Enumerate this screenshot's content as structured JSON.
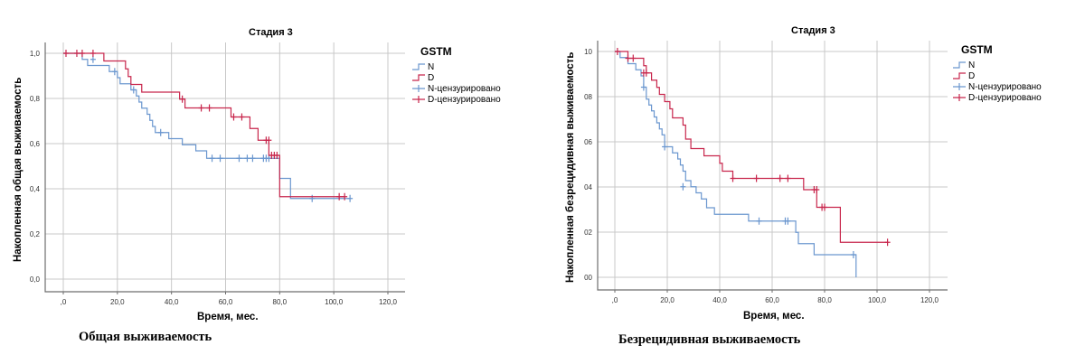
{
  "colors": {
    "N": "#6b97cf",
    "D": "#c8264c",
    "grid": "#c8c8c8",
    "axis": "#6e6e6e"
  },
  "chart_data": [
    {
      "type": "line",
      "subtype": "kaplan-meier-step",
      "title": "Стадия 3",
      "xlabel": "Время, мес.",
      "ylabel": "Накопленная общая выживаемость",
      "caption": "Общая выживаемость",
      "xlim": [
        0,
        120
      ],
      "ylim": [
        0,
        1
      ],
      "x_ticks": [
        ",0",
        "20,0",
        "40,0",
        "60,0",
        "80,0",
        "100,0",
        "120,0"
      ],
      "y_ticks": [
        "0,0",
        "0,2",
        "0,4",
        "0,6",
        "0,8",
        "1,0"
      ],
      "grid": true,
      "legend_title": "GSTM",
      "legend": [
        "N",
        "D",
        "N-цензурировано",
        "D-цензурировано"
      ],
      "legend_position": "right",
      "series": [
        {
          "name": "N",
          "steps": [
            [
              0,
              1.0
            ],
            [
              7,
              0.973
            ],
            [
              9,
              0.946
            ],
            [
              17,
              0.919
            ],
            [
              20,
              0.892
            ],
            [
              21,
              0.865
            ],
            [
              25,
              0.838
            ],
            [
              27,
              0.811
            ],
            [
              28,
              0.784
            ],
            [
              29,
              0.757
            ],
            [
              31,
              0.73
            ],
            [
              32,
              0.703
            ],
            [
              33,
              0.676
            ],
            [
              34,
              0.649
            ],
            [
              39,
              0.622
            ],
            [
              44,
              0.595
            ],
            [
              49,
              0.568
            ],
            [
              53,
              0.535
            ],
            [
              80,
              0.535
            ],
            [
              80,
              0.446
            ],
            [
              84,
              0.357
            ],
            [
              106,
              0.357
            ]
          ],
          "censored": [
            [
              11,
              0.973
            ],
            [
              19,
              0.919
            ],
            [
              26,
              0.838
            ],
            [
              36,
              0.649
            ],
            [
              55,
              0.535
            ],
            [
              58,
              0.535
            ],
            [
              65,
              0.535
            ],
            [
              68,
              0.535
            ],
            [
              70,
              0.535
            ],
            [
              74,
              0.535
            ],
            [
              75,
              0.535
            ],
            [
              76,
              0.535
            ],
            [
              92,
              0.357
            ],
            [
              106,
              0.357
            ]
          ]
        },
        {
          "name": "D",
          "steps": [
            [
              0,
              1.0
            ],
            [
              15,
              0.966
            ],
            [
              23,
              0.931
            ],
            [
              24,
              0.897
            ],
            [
              25,
              0.862
            ],
            [
              29,
              0.828
            ],
            [
              43,
              0.797
            ],
            [
              45,
              0.758
            ],
            [
              62,
              0.718
            ],
            [
              69,
              0.667
            ],
            [
              72,
              0.615
            ],
            [
              76,
              0.548
            ],
            [
              80,
              0.365
            ],
            [
              104,
              0.365
            ]
          ],
          "censored": [
            [
              1,
              1.0
            ],
            [
              5,
              1.0
            ],
            [
              7,
              1.0
            ],
            [
              11,
              1.0
            ],
            [
              44,
              0.797
            ],
            [
              51,
              0.758
            ],
            [
              54,
              0.758
            ],
            [
              63,
              0.718
            ],
            [
              66,
              0.718
            ],
            [
              75,
              0.615
            ],
            [
              76,
              0.615
            ],
            [
              77,
              0.548
            ],
            [
              78,
              0.548
            ],
            [
              79,
              0.548
            ],
            [
              102,
              0.365
            ],
            [
              104,
              0.365
            ]
          ]
        }
      ]
    },
    {
      "type": "line",
      "subtype": "kaplan-meier-step",
      "title": "Стадия 3",
      "xlabel": "Время, мес.",
      "ylabel": "Накопленная безрецидивная выживаемость",
      "caption": "Безрецидивная выживаемость",
      "xlim": [
        0,
        120
      ],
      "ylim": [
        0,
        1
      ],
      "x_ticks": [
        ",0",
        "20,0",
        "40,0",
        "60,0",
        "80,0",
        "100,0",
        "120,0"
      ],
      "y_ticks": [
        "00",
        "02",
        "04",
        "06",
        "08",
        "10"
      ],
      "grid": true,
      "legend_title": "GSTM",
      "legend": [
        "N",
        "D",
        "N-цензурировано",
        "D-цензурировано"
      ],
      "legend_position": "right",
      "series": [
        {
          "name": "N",
          "steps": [
            [
              0,
              1.0
            ],
            [
              2,
              0.973
            ],
            [
              5,
              0.946
            ],
            [
              8,
              0.919
            ],
            [
              10,
              0.892
            ],
            [
              11,
              0.842
            ],
            [
              12,
              0.789
            ],
            [
              13,
              0.763
            ],
            [
              14,
              0.737
            ],
            [
              15,
              0.71
            ],
            [
              16,
              0.684
            ],
            [
              17,
              0.657
            ],
            [
              18,
              0.631
            ],
            [
              19,
              0.578
            ],
            [
              22,
              0.551
            ],
            [
              24,
              0.524
            ],
            [
              25,
              0.497
            ],
            [
              26,
              0.47
            ],
            [
              27,
              0.428
            ],
            [
              29,
              0.401
            ],
            [
              31,
              0.374
            ],
            [
              33,
              0.347
            ],
            [
              35,
              0.308
            ],
            [
              38,
              0.279
            ],
            [
              51,
              0.249
            ],
            [
              69,
              0.249
            ],
            [
              69,
              0.199
            ],
            [
              70,
              0.149
            ],
            [
              76,
              0.1
            ],
            [
              92,
              0.1
            ],
            [
              92,
              0.0
            ]
          ],
          "censored": [
            [
              11,
              0.842
            ],
            [
              19,
              0.578
            ],
            [
              26,
              0.401
            ],
            [
              55,
              0.249
            ],
            [
              65,
              0.249
            ],
            [
              66,
              0.249
            ],
            [
              91,
              0.1
            ]
          ]
        },
        {
          "name": "D",
          "steps": [
            [
              0,
              1.0
            ],
            [
              5,
              0.97
            ],
            [
              11,
              0.937
            ],
            [
              12,
              0.905
            ],
            [
              14,
              0.873
            ],
            [
              16,
              0.841
            ],
            [
              17,
              0.81
            ],
            [
              19,
              0.778
            ],
            [
              21,
              0.746
            ],
            [
              22,
              0.706
            ],
            [
              26,
              0.674
            ],
            [
              27,
              0.612
            ],
            [
              29,
              0.57
            ],
            [
              34,
              0.538
            ],
            [
              40,
              0.505
            ],
            [
              41,
              0.47
            ],
            [
              45,
              0.438
            ],
            [
              72,
              0.388
            ],
            [
              77,
              0.31
            ],
            [
              86,
              0.155
            ],
            [
              104,
              0.155
            ]
          ],
          "censored": [
            [
              1,
              1.0
            ],
            [
              5,
              0.97
            ],
            [
              7,
              0.97
            ],
            [
              11,
              0.905
            ],
            [
              12,
              0.905
            ],
            [
              45,
              0.438
            ],
            [
              54,
              0.438
            ],
            [
              63,
              0.438
            ],
            [
              66,
              0.438
            ],
            [
              76,
              0.388
            ],
            [
              77,
              0.388
            ],
            [
              79,
              0.31
            ],
            [
              80,
              0.31
            ],
            [
              104,
              0.155
            ]
          ]
        }
      ]
    }
  ]
}
